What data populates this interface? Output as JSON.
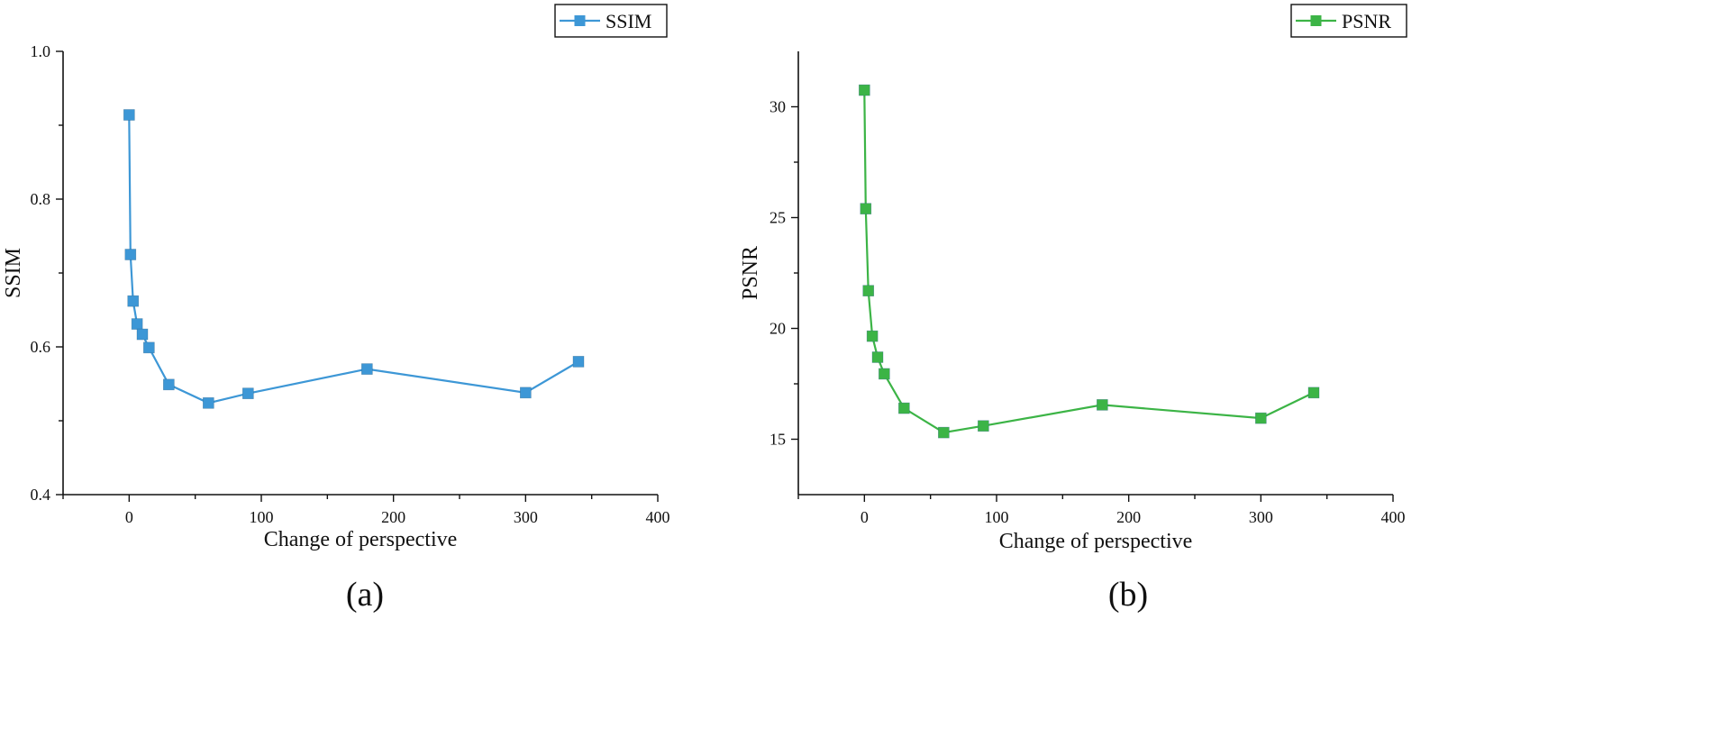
{
  "chart_data": [
    {
      "type": "line",
      "panel_label": "(a)",
      "xlabel": "Change of perspective",
      "ylabel": "SSIM",
      "xlim": [
        -50,
        400
      ],
      "ylim": [
        0.4,
        1.0
      ],
      "x_ticks": [
        0,
        100,
        200,
        300,
        400
      ],
      "y_ticks": [
        0.4,
        0.6,
        0.8,
        1.0
      ],
      "x_tick_labels": [
        "0",
        "100",
        "200",
        "300",
        "400"
      ],
      "y_tick_labels": [
        "0.4",
        "0.6",
        "0.8",
        "1.0"
      ],
      "legend_position": "top-right",
      "grid": false,
      "series": [
        {
          "name": "SSIM",
          "color": "#3d97d6",
          "marker": "square",
          "x": [
            0,
            1,
            3,
            6,
            10,
            15,
            30,
            60,
            90,
            180,
            300,
            340
          ],
          "y": [
            0.914,
            0.725,
            0.662,
            0.631,
            0.617,
            0.599,
            0.549,
            0.524,
            0.537,
            0.57,
            0.538,
            0.58
          ]
        }
      ]
    },
    {
      "type": "line",
      "panel_label": "(b)",
      "xlabel": "Change of perspective",
      "ylabel": "PSNR",
      "xlim": [
        -50,
        400
      ],
      "ylim": [
        12.5,
        32.5
      ],
      "x_ticks": [
        0,
        100,
        200,
        300,
        400
      ],
      "y_ticks": [
        15,
        20,
        25,
        30
      ],
      "x_tick_labels": [
        "0",
        "100",
        "200",
        "300",
        "400"
      ],
      "y_tick_labels": [
        "15",
        "20",
        "25",
        "30"
      ],
      "legend_position": "top-right",
      "grid": false,
      "series": [
        {
          "name": "PSNR",
          "color": "#3cb446",
          "marker": "square",
          "x": [
            0,
            1,
            3,
            6,
            10,
            15,
            30,
            60,
            90,
            180,
            300,
            340
          ],
          "y": [
            30.75,
            25.4,
            21.7,
            19.65,
            18.7,
            17.95,
            16.4,
            15.3,
            15.6,
            16.55,
            15.95,
            17.1
          ]
        }
      ]
    }
  ]
}
